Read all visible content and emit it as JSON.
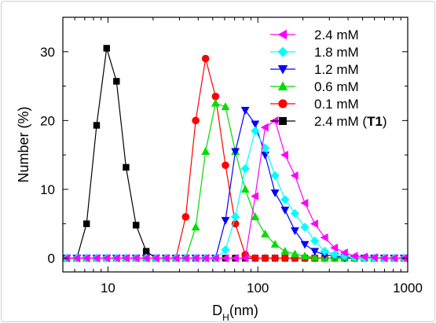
{
  "chart_data": {
    "type": "line",
    "x_scale": "log",
    "xlim": [
      5,
      1000
    ],
    "ylim": [
      -2,
      35
    ],
    "xlabel_main": "D",
    "xlabel_sub": "H",
    "xlabel_tail": "(nm)",
    "ylabel": "Number (%)",
    "x_ticks": [
      10,
      100,
      1000
    ],
    "x_tick_labels": [
      "10",
      "100",
      "1000"
    ],
    "y_ticks": [
      0,
      10,
      20,
      30
    ],
    "y_tick_labels": [
      "0",
      "10",
      "20",
      "30"
    ],
    "legend_position": "top-right",
    "series": [
      {
        "name": "2.4 mM",
        "color": "#ff00ff",
        "marker": "triangle-left",
        "x": [
          5.3,
          6.2,
          7.2,
          8.4,
          9.8,
          11.4,
          13.2,
          15.4,
          18,
          20.9,
          24.4,
          28.4,
          33,
          38.5,
          44.8,
          52.2,
          60.8,
          70.8,
          82.4,
          96,
          111.9,
          130.3,
          151.8,
          176.8,
          205.9,
          239.8,
          279.3,
          325.3,
          378.9,
          441.3,
          514,
          598.6,
          697.2,
          812.1,
          945.8
        ],
        "y": [
          0,
          0,
          0,
          0,
          0,
          0,
          0,
          0,
          0,
          0,
          0,
          0,
          0,
          0,
          0,
          0,
          0,
          0,
          0,
          9,
          19,
          20,
          15,
          12,
          8,
          5,
          3,
          1.5,
          0.8,
          0.3,
          0.2,
          0.1,
          0,
          0,
          0
        ]
      },
      {
        "name": "1.8 mM",
        "color": "#00ffff",
        "marker": "diamond",
        "x": [
          5.3,
          6.2,
          7.2,
          8.4,
          9.8,
          11.4,
          13.2,
          15.4,
          18,
          20.9,
          24.4,
          28.4,
          33,
          38.5,
          44.8,
          52.2,
          60.8,
          70.8,
          82.4,
          96,
          111.9,
          130.3,
          151.8,
          176.8,
          205.9,
          239.8,
          279.3,
          325.3,
          378.9,
          441.3,
          514,
          598.6,
          697.2,
          812.1,
          945.8
        ],
        "y": [
          0,
          0,
          0,
          0,
          0,
          0,
          0,
          0,
          0,
          0,
          0,
          0,
          0,
          0,
          0,
          0,
          1.2,
          6,
          13,
          18.5,
          16,
          12,
          8.5,
          6.5,
          4.5,
          2.5,
          1,
          0.5,
          0.3,
          0.1,
          0,
          0,
          0,
          0,
          0
        ]
      },
      {
        "name": "1.2 mM",
        "color": "#0000ff",
        "marker": "triangle-down",
        "x": [
          5.3,
          6.2,
          7.2,
          8.4,
          9.8,
          11.4,
          13.2,
          15.4,
          18,
          20.9,
          24.4,
          28.4,
          33,
          38.5,
          44.8,
          52.2,
          60.8,
          70.8,
          82.4,
          96,
          111.9,
          130.3,
          151.8,
          176.8,
          205.9,
          239.8,
          279.3,
          325.3,
          378.9,
          441.3,
          514,
          598.6,
          697.2,
          812.1,
          945.8
        ],
        "y": [
          0,
          0,
          0,
          0,
          0,
          0,
          0,
          0,
          0,
          0,
          0,
          0,
          0,
          0,
          0,
          0,
          5.5,
          15.5,
          21.5,
          19.5,
          15,
          9.5,
          7,
          4,
          2,
          1,
          0.5,
          0.3,
          0.1,
          0,
          0,
          0,
          0,
          0,
          0
        ]
      },
      {
        "name": "0.6 mM",
        "color": "#00dd00",
        "marker": "triangle-up",
        "x": [
          5.3,
          6.2,
          7.2,
          8.4,
          9.8,
          11.4,
          13.2,
          15.4,
          18,
          20.9,
          24.4,
          28.4,
          33,
          38.5,
          44.8,
          52.2,
          60.8,
          70.8,
          82.4,
          96,
          111.9,
          130.3,
          151.8,
          176.8,
          205.9,
          239.8,
          279.3,
          325.3,
          378.9,
          441.3,
          514,
          598.6,
          697.2,
          812.1,
          945.8
        ],
        "y": [
          0,
          0,
          0,
          0,
          0,
          0,
          0,
          0,
          0,
          0,
          0,
          0,
          0,
          4.5,
          15.5,
          22.5,
          22,
          15.5,
          10,
          6,
          3.5,
          2,
          1,
          0.6,
          0.3,
          0.1,
          0,
          0,
          0,
          0,
          0,
          0,
          0,
          0,
          0
        ]
      },
      {
        "name": "0.1 mM",
        "color": "#ff0000",
        "marker": "circle",
        "x": [
          5.3,
          6.2,
          7.2,
          8.4,
          9.8,
          11.4,
          13.2,
          15.4,
          18,
          20.9,
          24.4,
          28.4,
          33,
          38.5,
          44.8,
          52.2,
          60.8,
          70.8,
          82.4,
          96,
          111.9,
          130.3,
          151.8,
          176.8,
          205.9,
          239.8,
          279.3,
          325.3,
          378.9,
          441.3,
          514,
          598.6,
          697.2,
          812.1,
          945.8
        ],
        "y": [
          0,
          0,
          0,
          0,
          0,
          0,
          0,
          0,
          0,
          0,
          0,
          0,
          6,
          20,
          29,
          23.5,
          13.5,
          5,
          0.5,
          0,
          0,
          0,
          0,
          0,
          0,
          0,
          0,
          0,
          0,
          0,
          0,
          0,
          0,
          0,
          0
        ]
      },
      {
        "name": "2.4 mM (T1)",
        "name_parts": [
          "2.4 mM (",
          "T1",
          ")"
        ],
        "color": "#000000",
        "marker": "square",
        "x": [
          5.3,
          6.2,
          7.2,
          8.4,
          9.8,
          11.4,
          13.2,
          15.4,
          18,
          20.9,
          24.4,
          28.4,
          33,
          38.5,
          44.8,
          52.2,
          60.8,
          70.8,
          82.4,
          96,
          111.9,
          130.3,
          151.8,
          176.8,
          205.9,
          239.8,
          279.3,
          325.3,
          378.9,
          441.3,
          514,
          598.6,
          697.2,
          812.1,
          945.8
        ],
        "y": [
          0,
          0,
          5,
          19.3,
          30.5,
          25.7,
          13.2,
          4.8,
          1,
          0,
          0,
          0,
          0,
          0,
          0,
          0,
          0,
          0,
          0,
          0,
          0,
          0,
          0,
          0,
          0,
          0,
          0,
          0,
          0,
          0,
          0,
          0,
          0,
          0,
          0
        ]
      }
    ]
  }
}
